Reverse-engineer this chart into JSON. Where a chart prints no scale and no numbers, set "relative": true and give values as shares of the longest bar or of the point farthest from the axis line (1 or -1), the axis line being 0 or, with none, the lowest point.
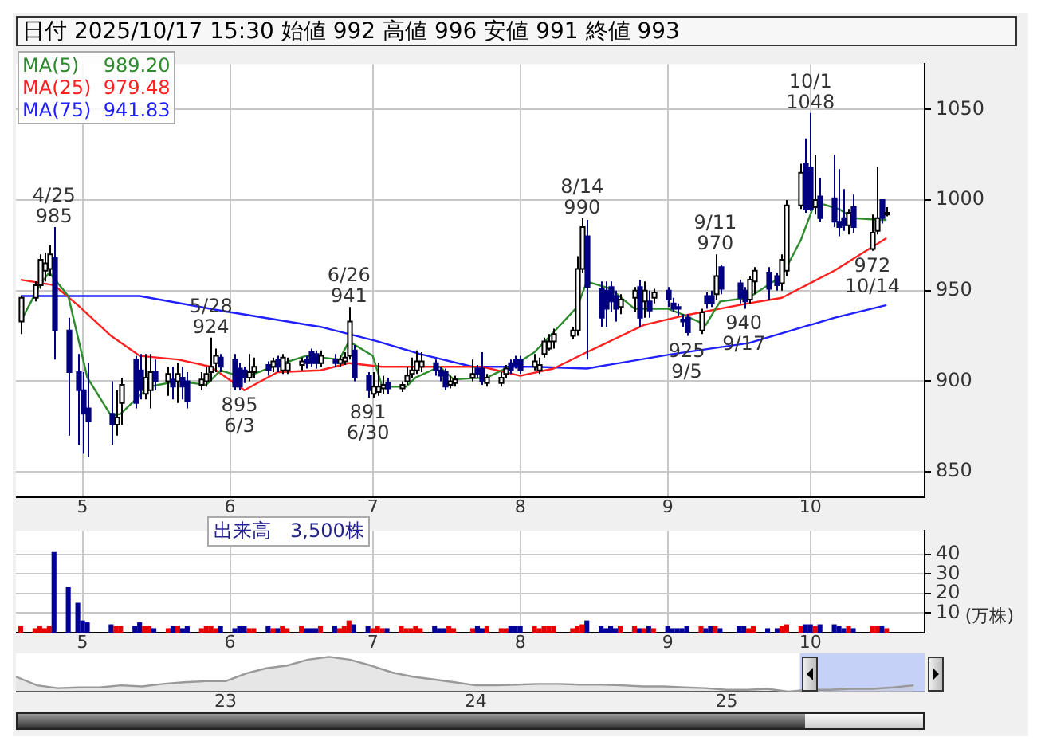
{
  "chart_data": [
    {
      "type": "candlestick",
      "title": "日付 2025/10/17 15:30 始値 992 高値 996 安値 991 終値 993",
      "x": [
        "2025-04-18",
        "2025-04-21",
        "2025-04-22",
        "2025-04-23",
        "2025-04-24",
        "2025-04-25",
        "2025-04-28",
        "2025-04-30",
        "2025-05-01",
        "2025-05-02",
        "2025-05-07",
        "2025-05-08",
        "2025-05-09",
        "2025-05-12",
        "2025-05-13",
        "2025-05-14",
        "2025-05-15",
        "2025-05-16",
        "2025-05-19",
        "2025-05-20",
        "2025-05-21",
        "2025-05-22",
        "2025-05-23",
        "2025-05-26",
        "2025-05-27",
        "2025-05-28",
        "2025-05-29",
        "2025-05-30",
        "2025-06-02",
        "2025-06-03",
        "2025-06-04",
        "2025-06-05",
        "2025-06-06",
        "2025-06-09",
        "2025-06-10",
        "2025-06-11",
        "2025-06-12",
        "2025-06-13",
        "2025-06-16",
        "2025-06-17",
        "2025-06-18",
        "2025-06-19",
        "2025-06-20",
        "2025-06-23",
        "2025-06-24",
        "2025-06-25",
        "2025-06-26",
        "2025-06-27",
        "2025-06-30",
        "2025-07-01",
        "2025-07-02",
        "2025-07-03",
        "2025-07-04",
        "2025-07-07",
        "2025-07-08",
        "2025-07-09",
        "2025-07-10",
        "2025-07-11",
        "2025-07-14",
        "2025-07-15",
        "2025-07-16",
        "2025-07-17",
        "2025-07-18",
        "2025-07-22",
        "2025-07-23",
        "2025-07-24",
        "2025-07-25",
        "2025-07-28",
        "2025-07-29",
        "2025-07-30",
        "2025-07-31",
        "2025-08-01",
        "2025-08-04",
        "2025-08-05",
        "2025-08-06",
        "2025-08-07",
        "2025-08-08",
        "2025-08-12",
        "2025-08-13",
        "2025-08-14",
        "2025-08-15",
        "2025-08-18",
        "2025-08-19",
        "2025-08-20",
        "2025-08-21",
        "2025-08-22",
        "2025-08-25",
        "2025-08-26",
        "2025-08-27",
        "2025-08-28",
        "2025-08-29",
        "2025-09-01",
        "2025-09-02",
        "2025-09-03",
        "2025-09-04",
        "2025-09-05",
        "2025-09-08",
        "2025-09-09",
        "2025-09-10",
        "2025-09-11",
        "2025-09-12",
        "2025-09-16",
        "2025-09-17",
        "2025-09-18",
        "2025-09-19",
        "2025-09-22",
        "2025-09-24",
        "2025-09-25",
        "2025-09-26",
        "2025-09-29",
        "2025-09-30",
        "2025-10-01",
        "2025-10-02",
        "2025-10-03",
        "2025-10-06",
        "2025-10-07",
        "2025-10-08",
        "2025-10-09",
        "2025-10-10",
        "2025-10-14",
        "2025-10-15",
        "2025-10-16",
        "2025-10-17"
      ],
      "ohlc": [
        [
          933,
          947,
          926,
          946
        ],
        [
          946,
          955,
          944,
          953
        ],
        [
          953,
          970,
          951,
          967
        ],
        [
          961,
          971,
          955,
          965
        ],
        [
          962,
          975,
          958,
          970
        ],
        [
          968,
          985,
          912,
          928
        ],
        [
          928,
          935,
          870,
          905
        ],
        [
          905,
          915,
          865,
          895
        ],
        [
          895,
          905,
          860,
          882
        ],
        [
          885,
          910,
          858,
          878
        ],
        [
          882,
          900,
          865,
          876
        ],
        [
          876,
          895,
          870,
          880
        ],
        [
          888,
          902,
          876,
          898
        ],
        [
          912,
          914,
          885,
          888
        ],
        [
          906,
          915,
          890,
          895
        ],
        [
          893,
          915,
          890,
          902
        ],
        [
          895,
          915,
          885,
          905
        ],
        [
          905,
          912,
          895,
          900
        ],
        [
          900,
          908,
          892,
          904
        ],
        [
          901,
          908,
          890,
          897
        ],
        [
          900,
          910,
          888,
          904
        ],
        [
          902,
          908,
          890,
          897
        ],
        [
          900,
          905,
          885,
          889
        ],
        [
          898,
          905,
          895,
          901
        ],
        [
          900,
          908,
          897,
          904
        ],
        [
          905,
          924,
          900,
          908
        ],
        [
          910,
          918,
          905,
          914
        ],
        [
          913,
          915,
          905,
          908
        ],
        [
          912,
          915,
          895,
          897
        ],
        [
          907,
          910,
          895,
          897
        ],
        [
          906,
          908,
          899,
          902
        ],
        [
          902,
          915,
          900,
          905
        ],
        [
          905,
          913,
          902,
          908
        ],
        [
          909,
          911,
          903,
          906
        ],
        [
          908,
          913,
          905,
          911
        ],
        [
          912,
          914,
          905,
          908
        ],
        [
          906,
          915,
          904,
          913
        ],
        [
          906,
          913,
          904,
          910
        ],
        [
          909,
          913,
          906,
          911
        ],
        [
          912,
          914,
          907,
          910
        ],
        [
          916,
          918,
          908,
          910
        ],
        [
          915,
          917,
          907,
          910
        ],
        [
          910,
          917,
          908,
          914
        ],
        [
          912,
          915,
          908,
          910
        ],
        [
          910,
          914,
          908,
          912
        ],
        [
          911,
          916,
          909,
          913
        ],
        [
          914,
          941,
          912,
          933
        ],
        [
          917,
          920,
          900,
          902
        ],
        [
          903,
          905,
          891,
          895
        ],
        [
          893,
          905,
          891,
          897
        ],
        [
          894,
          910,
          892,
          897
        ],
        [
          896,
          903,
          893,
          898
        ],
        [
          899,
          902,
          893,
          896
        ],
        [
          896,
          900,
          894,
          898
        ],
        [
          900,
          908,
          898,
          903
        ],
        [
          904,
          913,
          902,
          906
        ],
        [
          906,
          917,
          904,
          911
        ],
        [
          908,
          916,
          905,
          911
        ],
        [
          910,
          912,
          903,
          906
        ],
        [
          906,
          908,
          900,
          903
        ],
        [
          905,
          907,
          895,
          897
        ],
        [
          898,
          903,
          896,
          900
        ],
        [
          899,
          903,
          897,
          901
        ],
        [
          902,
          912,
          900,
          904
        ],
        [
          907,
          909,
          902,
          904
        ],
        [
          907,
          916,
          898,
          900
        ],
        [
          899,
          904,
          897,
          902
        ],
        [
          899,
          905,
          897,
          902
        ],
        [
          904,
          909,
          902,
          907
        ],
        [
          910,
          912,
          904,
          906
        ],
        [
          912,
          914,
          907,
          909
        ],
        [
          912,
          914,
          904,
          906
        ],
        [
          908,
          915,
          906,
          911
        ],
        [
          906,
          913,
          904,
          909
        ],
        [
          915,
          924,
          913,
          922
        ],
        [
          918,
          926,
          917,
          922
        ],
        [
          922,
          929,
          918,
          926
        ],
        [
          925,
          930,
          923,
          928
        ],
        [
          928,
          969,
          925,
          962
        ],
        [
          962,
          990,
          960,
          985
        ],
        [
          980,
          989,
          912,
          952
        ],
        [
          951,
          955,
          930,
          935
        ],
        [
          950,
          955,
          930,
          940
        ],
        [
          952,
          955,
          938,
          944
        ],
        [
          947,
          950,
          933,
          940
        ],
        [
          941,
          948,
          937,
          945
        ],
        [
          946,
          952,
          938,
          950
        ],
        [
          952,
          956,
          930,
          935
        ],
        [
          944,
          955,
          935,
          950
        ],
        [
          944,
          950,
          935,
          939
        ],
        [
          946,
          951,
          943,
          949
        ],
        [
          950,
          952,
          941,
          945
        ],
        [
          943,
          946,
          938,
          940
        ],
        [
          941,
          943,
          936,
          940
        ],
        [
          934,
          937,
          930,
          933
        ],
        [
          935,
          937,
          925,
          927
        ],
        [
          928,
          940,
          926,
          938
        ],
        [
          947,
          949,
          940,
          943
        ],
        [
          947,
          950,
          941,
          943
        ],
        [
          948,
          970,
          945,
          958
        ],
        [
          963,
          964,
          948,
          951
        ],
        [
          954,
          956,
          943,
          946
        ],
        [
          950,
          952,
          940,
          944
        ],
        [
          945,
          958,
          943,
          956
        ],
        [
          955,
          963,
          948,
          961
        ],
        [
          960,
          963,
          945,
          951
        ],
        [
          958,
          960,
          950,
          953
        ],
        [
          954,
          970,
          950,
          967
        ],
        [
          961,
          1000,
          958,
          997
        ],
        [
          997,
          1020,
          995,
          1015
        ],
        [
          1020,
          1034,
          993,
          995
        ],
        [
          1018,
          1048,
          994,
          995
        ],
        [
          996,
          1025,
          992,
          1000
        ],
        [
          1002,
          1012,
          988,
          990
        ],
        [
          1001,
          1025,
          985,
          988
        ],
        [
          988,
          1017,
          980,
          985
        ],
        [
          990,
          1006,
          983,
          986
        ],
        [
          986,
          995,
          981,
          993
        ],
        [
          996,
          1003,
          982,
          985
        ],
        [
          973,
          992,
          972,
          982
        ],
        [
          983,
          1018,
          981,
          990
        ],
        [
          1000,
          1000,
          987,
          990
        ],
        [
          992,
          996,
          991,
          993
        ]
      ],
      "series": [
        {
          "name": "MA(5)    989.20",
          "type": "line",
          "color": "#2e8b2e",
          "x": [
            "2025-04-18",
            "2025-04-22",
            "2025-04-24",
            "2025-04-28",
            "2025-05-02",
            "2025-05-07",
            "2025-05-09",
            "2025-05-15",
            "2025-05-21",
            "2025-05-27",
            "2025-05-30",
            "2025-06-04",
            "2025-06-11",
            "2025-06-17",
            "2025-06-24",
            "2025-06-26",
            "2025-07-01",
            "2025-07-03",
            "2025-07-08",
            "2025-07-10",
            "2025-07-15",
            "2025-07-18",
            "2025-07-25",
            "2025-08-01",
            "2025-08-04",
            "2025-08-08",
            "2025-08-13",
            "2025-08-15",
            "2025-08-20",
            "2025-08-25",
            "2025-09-01",
            "2025-09-04",
            "2025-09-09",
            "2025-09-12",
            "2025-09-18",
            "2025-09-25",
            "2025-09-29",
            "2025-10-02",
            "2025-10-07",
            "2025-10-10",
            "2025-10-16",
            "2025-10-17"
          ],
          "values": [
            933,
            953,
            960,
            947,
            902,
            881,
            882,
            897,
            900,
            898,
            906,
            902,
            909,
            914,
            912,
            922,
            914,
            897,
            897,
            902,
            908,
            901,
            902,
            911,
            916,
            927,
            941,
            955,
            951,
            940,
            940,
            937,
            931,
            944,
            946,
            958,
            978,
            999,
            995,
            990,
            989,
            989
          ]
        },
        {
          "name": "MA(25)  979.48",
          "type": "line",
          "color": "#ff2020",
          "x": [
            "2025-04-18",
            "2025-04-25",
            "2025-04-30",
            "2025-05-07",
            "2025-05-13",
            "2025-05-21",
            "2025-05-28",
            "2025-06-04",
            "2025-06-11",
            "2025-06-20",
            "2025-06-26",
            "2025-07-03",
            "2025-07-11",
            "2025-07-24",
            "2025-08-01",
            "2025-08-08",
            "2025-08-15",
            "2025-08-27",
            "2025-09-04",
            "2025-09-18",
            "2025-09-25",
            "2025-10-06",
            "2025-10-17"
          ],
          "values": [
            956,
            953,
            942,
            925,
            914,
            912,
            908,
            895,
            905,
            906,
            910,
            908,
            908,
            908,
            903,
            907,
            916,
            931,
            936,
            943,
            946,
            961,
            979
          ]
        },
        {
          "name": "MA(75)  941.83",
          "type": "line",
          "color": "#2020ff",
          "x": [
            "2025-04-18",
            "2025-05-13",
            "2025-05-30",
            "2025-06-20",
            "2025-07-02",
            "2025-07-11",
            "2025-07-22",
            "2025-08-04",
            "2025-08-15",
            "2025-09-02",
            "2025-09-18",
            "2025-10-06",
            "2025-10-17"
          ],
          "values": [
            947,
            947,
            939,
            930,
            922,
            915,
            908,
            908,
            907,
            915,
            921,
            935,
            942
          ]
        }
      ],
      "annotations": [
        {
          "text": "4/25\n985",
          "x": "2025-04-25",
          "y": 985
        },
        {
          "text": "5/28\n924",
          "x": "2025-05-28",
          "y": 924
        },
        {
          "text": "895\n6/3",
          "x": "2025-06-03",
          "y": 895
        },
        {
          "text": "6/26\n941",
          "x": "2025-06-26",
          "y": 941
        },
        {
          "text": "891\n6/30",
          "x": "2025-06-30",
          "y": 891
        },
        {
          "text": "8/14\n990",
          "x": "2025-08-14",
          "y": 990
        },
        {
          "text": "925\n9/5",
          "x": "2025-09-05",
          "y": 925
        },
        {
          "text": "9/11\n970",
          "x": "2025-09-11",
          "y": 970
        },
        {
          "text": "940\n9/17",
          "x": "2025-09-17",
          "y": 940
        },
        {
          "text": "10/1\n1048",
          "x": "2025-10-01",
          "y": 1048
        },
        {
          "text": "972\n10/14",
          "x": "2025-10-14",
          "y": 972
        }
      ],
      "ylim": [
        836,
        1075
      ],
      "yticks": [
        850,
        900,
        950,
        1000,
        1050
      ],
      "xlim": [
        "2025-04-17",
        "2025-10-25"
      ],
      "xticks": [
        {
          "value": "2025-05-01",
          "label": "5"
        },
        {
          "value": "2025-06-01",
          "label": "6"
        },
        {
          "value": "2025-07-01",
          "label": "7"
        },
        {
          "value": "2025-08-01",
          "label": "8"
        },
        {
          "value": "2025-09-01",
          "label": "9"
        },
        {
          "value": "2025-10-01",
          "label": "10"
        }
      ],
      "grid": true,
      "legend": "top left"
    },
    {
      "type": "bar",
      "title": "出来高　3,500株",
      "ylabel": "(万株)",
      "x": [
        "2025-04-18",
        "2025-04-21",
        "2025-04-22",
        "2025-04-23",
        "2025-04-24",
        "2025-04-25",
        "2025-04-28",
        "2025-04-30",
        "2025-05-01",
        "2025-05-02",
        "2025-05-07",
        "2025-05-08",
        "2025-05-09",
        "2025-05-12",
        "2025-05-13",
        "2025-05-14",
        "2025-05-15",
        "2025-05-16",
        "2025-05-19",
        "2025-05-20",
        "2025-05-21",
        "2025-05-22",
        "2025-05-23",
        "2025-05-26",
        "2025-05-27",
        "2025-05-28",
        "2025-05-29",
        "2025-05-30",
        "2025-06-02",
        "2025-06-03",
        "2025-06-04",
        "2025-06-05",
        "2025-06-06",
        "2025-06-09",
        "2025-06-10",
        "2025-06-11",
        "2025-06-12",
        "2025-06-13",
        "2025-06-16",
        "2025-06-17",
        "2025-06-18",
        "2025-06-19",
        "2025-06-20",
        "2025-06-23",
        "2025-06-24",
        "2025-06-25",
        "2025-06-26",
        "2025-06-27",
        "2025-06-30",
        "2025-07-01",
        "2025-07-02",
        "2025-07-03",
        "2025-07-04",
        "2025-07-07",
        "2025-07-08",
        "2025-07-09",
        "2025-07-10",
        "2025-07-11",
        "2025-07-14",
        "2025-07-15",
        "2025-07-16",
        "2025-07-17",
        "2025-07-18",
        "2025-07-22",
        "2025-07-23",
        "2025-07-24",
        "2025-07-25",
        "2025-07-28",
        "2025-07-29",
        "2025-07-30",
        "2025-07-31",
        "2025-08-01",
        "2025-08-04",
        "2025-08-05",
        "2025-08-06",
        "2025-08-07",
        "2025-08-08",
        "2025-08-12",
        "2025-08-13",
        "2025-08-14",
        "2025-08-15",
        "2025-08-18",
        "2025-08-19",
        "2025-08-20",
        "2025-08-21",
        "2025-08-22",
        "2025-08-25",
        "2025-08-26",
        "2025-08-27",
        "2025-08-28",
        "2025-08-29",
        "2025-09-01",
        "2025-09-02",
        "2025-09-03",
        "2025-09-04",
        "2025-09-05",
        "2025-09-08",
        "2025-09-09",
        "2025-09-10",
        "2025-09-11",
        "2025-09-12",
        "2025-09-16",
        "2025-09-17",
        "2025-09-18",
        "2025-09-19",
        "2025-09-22",
        "2025-09-24",
        "2025-09-25",
        "2025-09-26",
        "2025-09-29",
        "2025-09-30",
        "2025-10-01",
        "2025-10-02",
        "2025-10-03",
        "2025-10-06",
        "2025-10-07",
        "2025-10-08",
        "2025-10-09",
        "2025-10-10",
        "2025-10-14",
        "2025-10-15",
        "2025-10-16",
        "2025-10-17"
      ],
      "values": [
        3,
        2,
        3,
        2,
        3,
        41,
        23,
        15,
        6,
        5,
        4,
        3,
        3,
        3,
        5,
        3,
        3,
        2,
        2,
        3,
        3,
        2,
        3,
        2,
        3,
        3,
        2,
        3,
        2,
        3,
        3,
        2,
        2,
        3,
        2,
        2,
        3,
        2,
        3,
        2,
        2,
        2,
        3,
        3,
        2,
        3,
        6,
        4,
        3,
        2,
        3,
        2,
        2,
        3,
        2,
        2,
        3,
        2,
        3,
        2,
        2,
        3,
        2,
        2,
        3,
        2,
        3,
        2,
        2,
        3,
        3,
        3,
        3,
        2,
        3,
        3,
        3,
        2,
        3,
        4,
        6,
        3,
        2,
        3,
        2,
        3,
        3,
        2,
        2,
        3,
        2,
        3,
        2,
        2,
        2,
        3,
        3,
        2,
        3,
        3,
        2,
        3,
        3,
        2,
        3,
        2,
        2,
        3,
        4,
        3,
        4,
        4,
        3,
        4,
        4,
        3,
        2,
        3,
        2,
        3,
        3,
        3,
        2
      ],
      "colors": [
        "#e60000",
        "#e60000",
        "#e60000",
        "#e60000",
        "#e60000",
        "#000099",
        "#000099",
        "#000099",
        "#000099",
        "#000099",
        "#000099",
        "#e60000",
        "#e60000",
        "#000099",
        "#000099",
        "#e60000",
        "#e60000",
        "#000099",
        "#e60000",
        "#000099",
        "#e60000",
        "#000099",
        "#000099",
        "#e60000",
        "#e60000",
        "#e60000",
        "#e60000",
        "#000099",
        "#000099",
        "#000099",
        "#000099",
        "#e60000",
        "#e60000",
        "#000099",
        "#e60000",
        "#000099",
        "#e60000",
        "#e60000",
        "#e60000",
        "#000099",
        "#000099",
        "#000099",
        "#e60000",
        "#000099",
        "#e60000",
        "#e60000",
        "#e60000",
        "#000099",
        "#000099",
        "#e60000",
        "#e60000",
        "#e60000",
        "#000099",
        "#e60000",
        "#e60000",
        "#e60000",
        "#e60000",
        "#e60000",
        "#000099",
        "#000099",
        "#000099",
        "#e60000",
        "#e60000",
        "#e60000",
        "#000099",
        "#000099",
        "#e60000",
        "#e60000",
        "#e60000",
        "#000099",
        "#000099",
        "#000099",
        "#e60000",
        "#e60000",
        "#e60000",
        "#e60000",
        "#e60000",
        "#e60000",
        "#e60000",
        "#e60000",
        "#000099",
        "#000099",
        "#000099",
        "#000099",
        "#000099",
        "#e60000",
        "#e60000",
        "#000099",
        "#e60000",
        "#000099",
        "#e60000",
        "#000099",
        "#000099",
        "#000099",
        "#000099",
        "#000099",
        "#e60000",
        "#000099",
        "#000099",
        "#e60000",
        "#000099",
        "#000099",
        "#000099",
        "#e60000",
        "#e60000",
        "#000099",
        "#000099",
        "#e60000",
        "#e60000",
        "#e60000",
        "#000099",
        "#000099",
        "#e60000",
        "#000099",
        "#000099",
        "#000099",
        "#000099",
        "#e60000",
        "#000099",
        "#e60000",
        "#e60000",
        "#000099",
        "#e60000"
      ],
      "ylim": [
        0,
        52
      ],
      "yticks": [
        10,
        20,
        30,
        40
      ],
      "xlim": [
        "2025-04-17",
        "2025-10-25"
      ],
      "xticks": [
        {
          "value": "2025-05-01",
          "label": "5"
        },
        {
          "value": "2025-06-01",
          "label": "6"
        },
        {
          "value": "2025-07-01",
          "label": "7"
        },
        {
          "value": "2025-08-01",
          "label": "8"
        },
        {
          "value": "2025-09-01",
          "label": "9"
        },
        {
          "value": "2025-10-01",
          "label": "10"
        }
      ],
      "grid": true
    },
    {
      "type": "area",
      "relative": true,
      "color": "#999999",
      "x": [
        "2022-03",
        "2022-04",
        "2022-05",
        "2022-06",
        "2022-07",
        "2022-08",
        "2022-09",
        "2022-10",
        "2022-11",
        "2022-12",
        "2023-01",
        "2023-02",
        "2023-03",
        "2023-04",
        "2023-05",
        "2023-06",
        "2023-07",
        "2023-08",
        "2023-09",
        "2023-10",
        "2023-11",
        "2023-12",
        "2024-01",
        "2024-02",
        "2024-03",
        "2024-04",
        "2024-05",
        "2024-06",
        "2024-07",
        "2024-08",
        "2024-09",
        "2024-10",
        "2024-11",
        "2024-12",
        "2025-01",
        "2025-02",
        "2025-03",
        "2025-04",
        "2025-05",
        "2025-06",
        "2025-07",
        "2025-08",
        "2025-09",
        "2025-10"
      ],
      "values": [
        0.43,
        0.18,
        0.1,
        0.12,
        0.12,
        0.18,
        0.15,
        0.22,
        0.27,
        0.3,
        0.3,
        0.53,
        0.67,
        0.75,
        0.92,
        1,
        0.92,
        0.75,
        0.55,
        0.43,
        0.35,
        0.27,
        0.18,
        0.18,
        0.2,
        0.22,
        0.22,
        0.2,
        0.2,
        0.18,
        0.15,
        0.15,
        0.12,
        0.1,
        0.05,
        0.05,
        0.08,
        0,
        0.05,
        0.05,
        0.08,
        0.08,
        0.12,
        0.18
      ],
      "xlim": [
        "2022-03-01",
        "2025-10-17"
      ],
      "xticks": [
        {
          "value": "2023-01-01",
          "label": "23"
        },
        {
          "value": "2024-01-01",
          "label": "24"
        },
        {
          "value": "2025-01-01",
          "label": "25"
        }
      ],
      "bands": [
        {
          "axis": "x",
          "from": "2025-04-18",
          "to": "2025-10-17",
          "color": "#b8c6f5"
        }
      ]
    }
  ]
}
